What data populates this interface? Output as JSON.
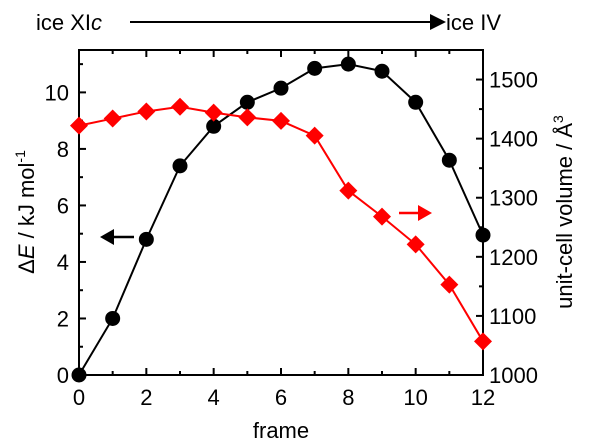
{
  "chart_data": {
    "type": "line",
    "x": [
      0,
      1,
      2,
      3,
      4,
      5,
      6,
      7,
      8,
      9,
      10,
      11,
      12
    ],
    "xlim": [
      0,
      12
    ],
    "xticks": [
      0,
      2,
      4,
      6,
      8,
      10,
      12
    ],
    "xlabel": "frame",
    "ylabel_left": {
      "delta": "Δ",
      "italic": "E",
      "rest": " / kJ mol",
      "sup": "-1"
    },
    "ylabel_right": {
      "text": "unit-cell volume / Å",
      "sup": "3"
    },
    "ylim_left": [
      0,
      11.5
    ],
    "yticks_left": [
      0,
      2,
      4,
      6,
      8,
      10
    ],
    "ylim_right": [
      1000,
      1550
    ],
    "yticks_right": [
      1000,
      1100,
      1200,
      1300,
      1400,
      1500
    ],
    "series": [
      {
        "axis": "left",
        "color": "#000000",
        "marker": "circle",
        "values": [
          0.0,
          2.0,
          4.8,
          7.4,
          8.8,
          9.65,
          10.15,
          10.85,
          11.0,
          10.75,
          9.65,
          7.6,
          4.95
        ]
      },
      {
        "axis": "right",
        "color": "#ff0000",
        "marker": "diamond",
        "values": [
          1422,
          1434,
          1446,
          1454,
          1444,
          1436,
          1430,
          1405,
          1312,
          1268,
          1221,
          1153,
          1057
        ]
      }
    ],
    "axis_arrows": [
      {
        "direction": "left",
        "color": "#000000"
      },
      {
        "direction": "right",
        "color": "#ff0000"
      }
    ],
    "top_annotation": {
      "start_prefix": "ice XI",
      "start_italic": "c",
      "end": "ice IV"
    }
  }
}
